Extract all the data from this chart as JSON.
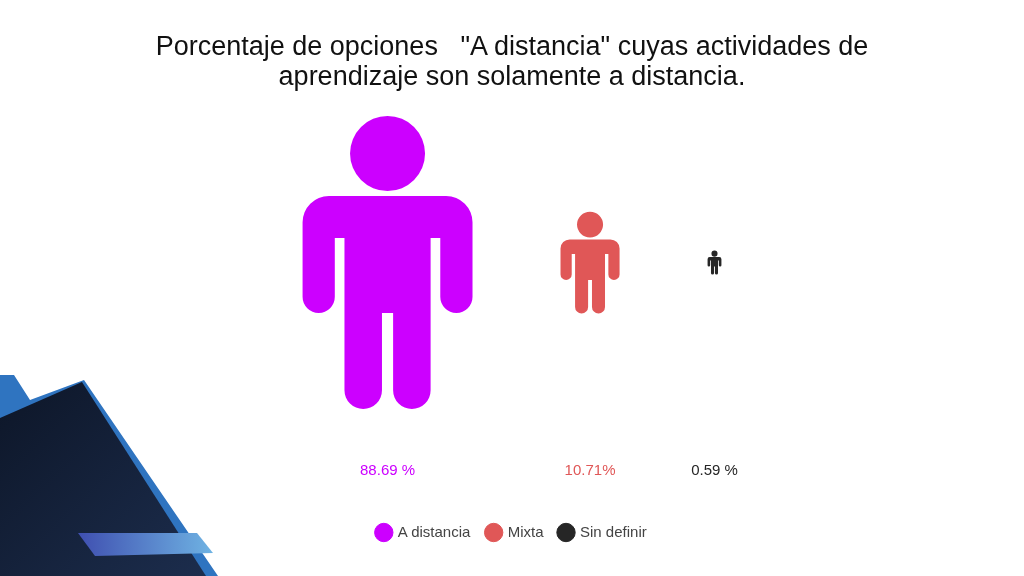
{
  "chart_data": {
    "type": "other",
    "title": "Porcentaje de opciones   \"A distancia\" cuyas actividades de aprendizaje son solamente a distancia.",
    "categories": [
      "A distancia",
      "Mixta",
      "Sin definir"
    ],
    "values": [
      88.69,
      10.71,
      0.59
    ],
    "value_labels": [
      "88.69 %",
      "10.71%",
      "0.59 %"
    ],
    "colors": [
      "#cc00ff",
      "#e05757",
      "#262626"
    ]
  }
}
